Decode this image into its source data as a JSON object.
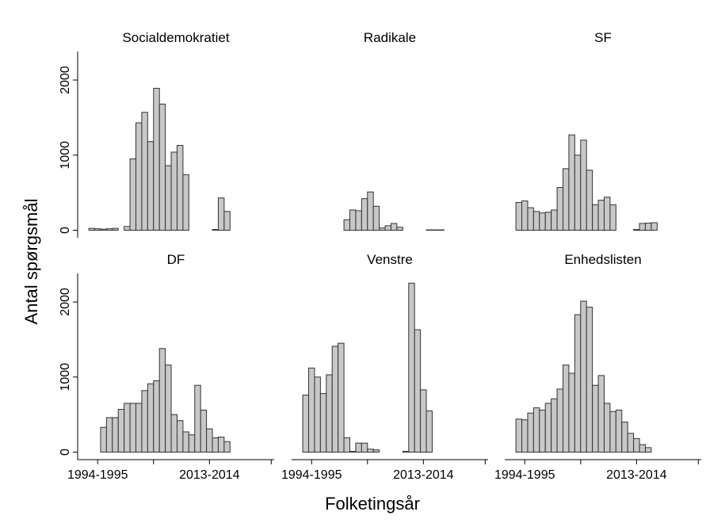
{
  "xlabel": "Folketingsår",
  "ylabel": "Antal spørgsmål",
  "chart_data": [
    {
      "type": "bar",
      "title": "Socialdemokratiet",
      "color": "#c8c8c8",
      "x": [
        1993,
        1994,
        1995,
        1996,
        1997,
        1998,
        1999,
        2000,
        2001,
        2002,
        2003,
        2004,
        2005,
        2006,
        2007,
        2008,
        2009,
        2010,
        2011,
        2012,
        2013,
        2014,
        2015,
        2016
      ],
      "values": [
        25,
        20,
        15,
        20,
        25,
        null,
        50,
        950,
        1430,
        1570,
        1180,
        1890,
        1680,
        860,
        1040,
        1130,
        740,
        null,
        null,
        null,
        null,
        10,
        430,
        250
      ],
      "xlim": [
        1990.6,
        2024
      ],
      "ylim": [
        -100,
        2380
      ],
      "yticks": [
        0,
        1000,
        2000
      ]
    },
    {
      "type": "bar",
      "title": "Radikale",
      "color": "#c8c8c8",
      "x": [
        1993,
        1994,
        1995,
        1996,
        1997,
        1998,
        1999,
        2000,
        2001,
        2002,
        2003,
        2004,
        2005,
        2006,
        2007,
        2008,
        2009,
        2010,
        2011,
        2012,
        2013,
        2014,
        2015,
        2016
      ],
      "values": [
        null,
        null,
        null,
        null,
        null,
        null,
        null,
        140,
        270,
        260,
        420,
        510,
        320,
        30,
        60,
        90,
        40,
        null,
        null,
        null,
        null,
        5,
        5,
        5
      ],
      "xlim": [
        1990.6,
        2024
      ],
      "ylim": [
        -100,
        2380
      ]
    },
    {
      "type": "bar",
      "title": "SF",
      "color": "#c8c8c8",
      "x": [
        1993,
        1994,
        1995,
        1996,
        1997,
        1998,
        1999,
        2000,
        2001,
        2002,
        2003,
        2004,
        2005,
        2006,
        2007,
        2008,
        2009,
        2010,
        2011,
        2012,
        2013,
        2014,
        2015,
        2016
      ],
      "values": [
        370,
        390,
        300,
        250,
        230,
        240,
        270,
        570,
        820,
        1270,
        1000,
        1200,
        800,
        340,
        400,
        440,
        340,
        null,
        null,
        null,
        10,
        90,
        95,
        100
      ],
      "xlim": [
        1990.6,
        2024
      ],
      "ylim": [
        -100,
        2380
      ]
    },
    {
      "type": "bar",
      "title": "DF",
      "color": "#c8c8c8",
      "x": [
        1993,
        1994,
        1995,
        1996,
        1997,
        1998,
        1999,
        2000,
        2001,
        2002,
        2003,
        2004,
        2005,
        2006,
        2007,
        2008,
        2009,
        2010,
        2011,
        2012,
        2013,
        2014,
        2015,
        2016
      ],
      "values": [
        null,
        null,
        330,
        460,
        460,
        570,
        650,
        650,
        650,
        820,
        910,
        950,
        1380,
        1160,
        500,
        420,
        270,
        230,
        890,
        560,
        310,
        190,
        200,
        140
      ],
      "xlim": [
        1990.6,
        2024
      ],
      "ylim": [
        -100,
        2380
      ],
      "yticks": [
        0,
        1000,
        2000
      ],
      "xticks": [
        {
          "value": 1994,
          "label": "1994-1995"
        },
        {
          "value": 2003.5,
          "label": null
        },
        {
          "value": 2013,
          "label": "2013-2014"
        },
        {
          "value": 2023.5,
          "label": null
        }
      ]
    },
    {
      "type": "bar",
      "title": "Venstre",
      "color": "#c8c8c8",
      "x": [
        1993,
        1994,
        1995,
        1996,
        1997,
        1998,
        1999,
        2000,
        2001,
        2002,
        2003,
        2004,
        2005,
        2006,
        2007,
        2008,
        2009,
        2010,
        2011,
        2012,
        2013,
        2014,
        2015,
        2016
      ],
      "values": [
        760,
        1120,
        1000,
        780,
        1030,
        1410,
        1450,
        190,
        10,
        120,
        120,
        40,
        30,
        null,
        null,
        null,
        null,
        10,
        2250,
        1630,
        830,
        550,
        null,
        null
      ],
      "xlim": [
        1990.6,
        2024
      ],
      "ylim": [
        -100,
        2380
      ],
      "xticks": [
        {
          "value": 1994,
          "label": "1994-1995"
        },
        {
          "value": 2003.5,
          "label": null
        },
        {
          "value": 2013,
          "label": "2013-2014"
        },
        {
          "value": 2023.5,
          "label": null
        }
      ]
    },
    {
      "type": "bar",
      "title": "Enhedslisten",
      "color": "#c8c8c8",
      "x": [
        1993,
        1994,
        1995,
        1996,
        1997,
        1998,
        1999,
        2000,
        2001,
        2002,
        2003,
        2004,
        2005,
        2006,
        2007,
        2008,
        2009,
        2010,
        2011,
        2012,
        2013,
        2014,
        2015,
        2016
      ],
      "values": [
        440,
        430,
        520,
        590,
        560,
        650,
        710,
        840,
        1160,
        1050,
        1830,
        2010,
        1930,
        890,
        1020,
        650,
        540,
        560,
        400,
        250,
        180,
        100,
        60,
        null
      ],
      "xlim": [
        1990.6,
        2024
      ],
      "ylim": [
        -100,
        2380
      ],
      "xticks": [
        {
          "value": 1994,
          "label": "1994-1995"
        },
        {
          "value": 2003.5,
          "label": null
        },
        {
          "value": 2013,
          "label": "2013-2014"
        },
        {
          "value": 2023.5,
          "label": null
        }
      ]
    }
  ]
}
